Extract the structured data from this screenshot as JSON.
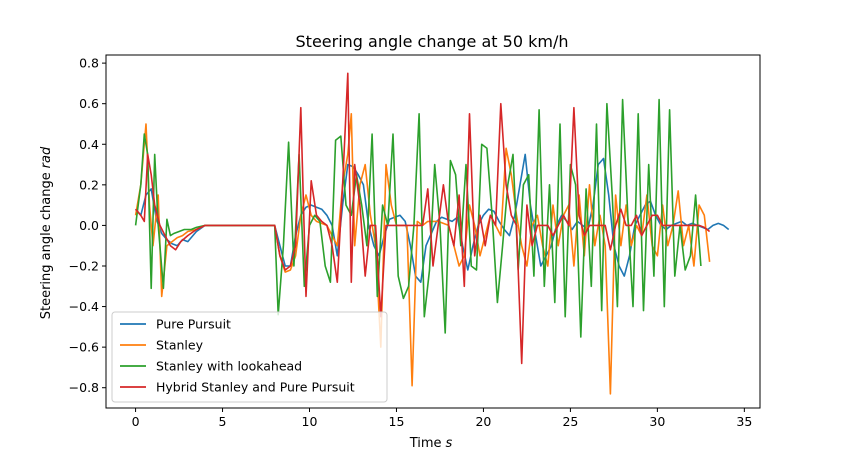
{
  "chart_data": {
    "type": "line",
    "title": "Steering angle change at 50 km/h",
    "xlabel": "Time",
    "xlabel_unit": "s",
    "ylabel": "Steering angle change",
    "ylabel_unit": "rad",
    "xlim": [
      -1.7,
      35.9
    ],
    "ylim": [
      -0.9,
      0.84
    ],
    "xticks": [
      0,
      5,
      10,
      15,
      20,
      25,
      30,
      35
    ],
    "yticks": [
      -0.8,
      -0.6,
      -0.4,
      -0.2,
      0.0,
      0.2,
      0.4,
      0.6,
      0.8
    ],
    "xtick_labels": [
      "0",
      "5",
      "10",
      "15",
      "20",
      "25",
      "30",
      "35"
    ],
    "ytick_labels": [
      "−0.8",
      "−0.6",
      "−0.4",
      "−0.2",
      "0.0",
      "0.2",
      "0.4",
      "0.6",
      "0.8"
    ],
    "grid": false,
    "legend_position": "lower-left",
    "series": [
      {
        "name": "Pure Pursuit",
        "color": "#1f77b4",
        "x": [
          0,
          0.3,
          0.6,
          0.9,
          1.2,
          1.5,
          1.8,
          2.1,
          2.4,
          2.7,
          3.0,
          3.5,
          4.0,
          5.0,
          6.0,
          7.0,
          8.0,
          8.3,
          8.6,
          8.9,
          9.2,
          9.5,
          9.8,
          10.1,
          10.4,
          10.7,
          11.0,
          11.3,
          11.6,
          11.9,
          12.2,
          12.5,
          12.8,
          13.1,
          13.4,
          13.7,
          14.0,
          14.3,
          14.6,
          14.9,
          15.2,
          15.5,
          15.8,
          16.1,
          16.4,
          16.7,
          17.0,
          17.3,
          17.6,
          17.9,
          18.2,
          18.5,
          18.8,
          19.1,
          19.4,
          19.7,
          20.0,
          20.3,
          20.6,
          20.9,
          21.2,
          21.5,
          21.8,
          22.1,
          22.4,
          22.7,
          23.0,
          23.3,
          23.6,
          23.9,
          24.2,
          24.5,
          24.8,
          25.1,
          25.4,
          25.7,
          26.0,
          26.3,
          26.6,
          26.9,
          27.2,
          27.5,
          27.8,
          28.1,
          28.4,
          28.7,
          29.0,
          29.3,
          29.6,
          29.9,
          30.2,
          30.5,
          30.8,
          31.1,
          31.4,
          31.7,
          32.0,
          32.3,
          32.6,
          32.9,
          33.2,
          33.5,
          33.8,
          34.1
        ],
        "values": [
          0.08,
          0.05,
          0.15,
          0.18,
          0.03,
          -0.04,
          -0.07,
          -0.09,
          -0.1,
          -0.07,
          -0.08,
          -0.03,
          0.0,
          0.0,
          0.0,
          0.0,
          0.0,
          -0.1,
          -0.2,
          -0.2,
          -0.05,
          0.05,
          0.09,
          0.1,
          0.09,
          0.08,
          0.05,
          0.0,
          -0.15,
          0.1,
          0.3,
          0.29,
          0.25,
          0.2,
          0.0,
          -0.1,
          -0.15,
          -0.05,
          0.03,
          0.04,
          0.05,
          0.02,
          -0.1,
          -0.25,
          -0.28,
          -0.1,
          -0.04,
          0.02,
          0.04,
          0.03,
          0.02,
          0.04,
          -0.1,
          -0.22,
          -0.1,
          0.0,
          0.05,
          0.08,
          0.07,
          0.02,
          -0.02,
          -0.05,
          0.05,
          0.2,
          0.35,
          0.1,
          -0.05,
          -0.2,
          -0.15,
          -0.1,
          0.0,
          0.05,
          0.02,
          -0.02,
          0.02,
          0.0,
          -0.02,
          0.1,
          0.3,
          0.33,
          0.15,
          -0.1,
          -0.2,
          -0.25,
          -0.15,
          0.0,
          0.05,
          0.1,
          0.12,
          0.05,
          0.0,
          -0.02,
          0.0,
          0.01,
          0.02,
          0.0,
          0.01,
          0.0,
          -0.01,
          -0.02,
          0.0,
          0.01,
          0.0,
          -0.02
        ]
      },
      {
        "name": "Stanley",
        "color": "#ff7f0e",
        "x": [
          0,
          0.3,
          0.6,
          0.8,
          1.0,
          1.3,
          1.5,
          1.8,
          2.1,
          2.4,
          2.7,
          3.0,
          3.5,
          4.0,
          5.0,
          6.0,
          7.0,
          8.0,
          8.3,
          8.6,
          8.9,
          9.2,
          9.5,
          9.8,
          10.1,
          10.4,
          10.7,
          11.0,
          11.3,
          11.6,
          11.9,
          12.2,
          12.4,
          12.6,
          12.9,
          13.2,
          13.5,
          13.8,
          14.1,
          14.4,
          14.7,
          15.0,
          15.3,
          15.6,
          15.9,
          16.2,
          16.5,
          16.8,
          17.1,
          17.4,
          17.7,
          18.0,
          18.3,
          18.6,
          18.9,
          19.2,
          19.5,
          19.8,
          20.1,
          20.4,
          20.7,
          21.0,
          21.3,
          21.6,
          21.9,
          22.2,
          22.5,
          22.8,
          23.1,
          23.4,
          23.7,
          24.0,
          24.3,
          24.6,
          24.9,
          25.2,
          25.5,
          25.8,
          26.1,
          26.4,
          26.7,
          27.0,
          27.3,
          27.6,
          27.9,
          28.2,
          28.5,
          28.8,
          29.1,
          29.4,
          29.7,
          30.0,
          30.3,
          30.6,
          30.9,
          31.2,
          31.5,
          31.8,
          32.1,
          32.4,
          32.7,
          33.0
        ],
        "values": [
          0.05,
          0.2,
          0.5,
          0.1,
          -0.1,
          0.15,
          -0.35,
          -0.1,
          -0.08,
          -0.06,
          -0.05,
          -0.03,
          -0.02,
          0.0,
          0.0,
          0.0,
          0.0,
          0.0,
          -0.15,
          -0.23,
          -0.22,
          -0.15,
          0.05,
          0.15,
          0.05,
          0.02,
          0.01,
          0.0,
          -0.05,
          -0.1,
          0.2,
          0.35,
          0.55,
          -0.1,
          0.2,
          0.3,
          0.05,
          -0.1,
          -0.6,
          0.3,
          0.1,
          0.0,
          0.0,
          0.0,
          -0.79,
          0.02,
          0.0,
          0.02,
          0.02,
          0.02,
          0.01,
          0.0,
          -0.1,
          -0.2,
          -0.15,
          0.1,
          0.0,
          -0.15,
          -0.05,
          0.05,
          0.0,
          -0.05,
          0.38,
          0.25,
          0.05,
          -0.1,
          -0.2,
          0.0,
          0.05,
          -0.1,
          -0.2,
          0.1,
          -0.1,
          0.05,
          0.1,
          -0.2,
          0.15,
          -0.15,
          0.2,
          -0.1,
          0.05,
          -0.1,
          -0.83,
          0.15,
          -0.1,
          0.1,
          -0.1,
          0.0,
          -0.05,
          0.15,
          -0.1,
          -0.15,
          0.1,
          -0.1,
          0.0,
          0.17,
          -0.1,
          0.0,
          -0.2,
          0.1,
          0.05,
          -0.18
        ]
      },
      {
        "name": "Stanley with lookahead",
        "color": "#2ca02c",
        "x": [
          0,
          0.3,
          0.5,
          0.7,
          0.9,
          1.1,
          1.3,
          1.6,
          1.8,
          2.0,
          2.2,
          2.5,
          2.8,
          3.2,
          3.5,
          4.0,
          5.0,
          6.0,
          7.0,
          8.0,
          8.2,
          8.5,
          8.8,
          9.1,
          9.4,
          9.7,
          10.0,
          10.3,
          10.6,
          10.9,
          11.2,
          11.5,
          11.8,
          12.1,
          12.4,
          12.7,
          13.0,
          13.3,
          13.6,
          13.9,
          14.2,
          14.5,
          14.8,
          15.1,
          15.4,
          15.7,
          16.0,
          16.3,
          16.6,
          16.9,
          17.2,
          17.5,
          17.8,
          18.1,
          18.4,
          18.7,
          19.0,
          19.3,
          19.6,
          19.9,
          20.2,
          20.5,
          20.8,
          21.1,
          21.4,
          21.7,
          22.0,
          22.3,
          22.6,
          22.9,
          23.2,
          23.5,
          23.8,
          24.1,
          24.4,
          24.7,
          25.0,
          25.3,
          25.6,
          25.9,
          26.2,
          26.5,
          26.8,
          27.1,
          27.4,
          27.7,
          28.0,
          28.3,
          28.6,
          28.9,
          29.2,
          29.5,
          29.8,
          30.1,
          30.4,
          30.7,
          31.0,
          31.3,
          31.6,
          31.9,
          32.2,
          32.5
        ],
        "values": [
          0.0,
          0.2,
          0.45,
          0.35,
          -0.31,
          0.35,
          0.0,
          -0.31,
          0.03,
          -0.05,
          -0.04,
          -0.03,
          -0.02,
          -0.02,
          -0.01,
          0.0,
          0.0,
          0.0,
          0.0,
          0.0,
          -0.44,
          -0.1,
          0.41,
          -0.2,
          0.35,
          -0.3,
          0.0,
          0.05,
          0.02,
          -0.2,
          -0.28,
          0.42,
          0.44,
          0.1,
          0.05,
          0.25,
          0.1,
          -0.1,
          0.45,
          -0.35,
          0.1,
          0.0,
          0.45,
          -0.25,
          -0.36,
          -0.3,
          0.0,
          0.55,
          -0.45,
          -0.22,
          0.3,
          0.0,
          -0.53,
          0.32,
          0.25,
          -0.1,
          0.3,
          -0.2,
          -0.22,
          0.4,
          0.38,
          0.05,
          -0.38,
          -0.1,
          0.2,
          0.35,
          -0.22,
          0.2,
          0.25,
          -0.25,
          0.57,
          -0.3,
          0.2,
          -0.38,
          0.5,
          -0.45,
          0.3,
          0.2,
          -0.55,
          0.18,
          -0.3,
          0.5,
          -0.42,
          0.6,
          0.15,
          -0.4,
          0.62,
          0.05,
          -0.4,
          0.55,
          -0.42,
          0.3,
          -0.25,
          0.62,
          -0.4,
          0.57,
          -0.25,
          0.0,
          -0.22,
          -0.15,
          0.15,
          -0.2
        ]
      },
      {
        "name": "Hybrid Stanley and Pure Pursuit",
        "color": "#d62728",
        "x": [
          0,
          0.3,
          0.5,
          0.7,
          0.9,
          1.1,
          1.4,
          1.7,
          2.0,
          2.3,
          2.6,
          3.0,
          3.5,
          4.0,
          5.0,
          6.0,
          7.0,
          8.0,
          8.3,
          8.6,
          8.9,
          9.2,
          9.5,
          9.8,
          10.1,
          10.4,
          10.7,
          11.0,
          11.3,
          11.6,
          11.9,
          12.2,
          12.4,
          12.6,
          12.9,
          13.2,
          13.5,
          13.8,
          14.1,
          14.4,
          14.7,
          15.0,
          15.3,
          15.6,
          15.9,
          16.2,
          16.5,
          16.8,
          17.1,
          17.4,
          17.7,
          18.0,
          18.3,
          18.6,
          18.9,
          19.2,
          19.5,
          19.8,
          20.1,
          20.4,
          20.7,
          21.0,
          21.3,
          21.6,
          21.9,
          22.2,
          22.5,
          22.8,
          23.1,
          23.4,
          23.7,
          24.0,
          24.3,
          24.6,
          24.9,
          25.2,
          25.5,
          25.8,
          26.1,
          26.4,
          26.7,
          27.0,
          27.3,
          27.6,
          27.9,
          28.2,
          28.5,
          28.8,
          29.1,
          29.4,
          29.7,
          30.0,
          30.3,
          30.6,
          30.9,
          31.2,
          31.5,
          31.8,
          32.1,
          32.4,
          32.7,
          33.0
        ],
        "values": [
          0.08,
          0.05,
          0.02,
          0.35,
          0.25,
          0.1,
          0.0,
          -0.05,
          -0.1,
          -0.12,
          -0.08,
          -0.05,
          -0.02,
          0.0,
          0.0,
          0.0,
          0.0,
          0.0,
          -0.15,
          -0.22,
          -0.2,
          -0.1,
          0.58,
          -0.35,
          0.22,
          0.05,
          0.02,
          0.0,
          -0.1,
          -0.28,
          0.2,
          0.75,
          -0.28,
          0.3,
          0.1,
          -0.25,
          0.0,
          0.0,
          -0.45,
          0.0,
          0.0,
          0.0,
          0.0,
          0.0,
          0.0,
          0.0,
          0.0,
          0.18,
          -0.2,
          0.0,
          0.2,
          0.0,
          -0.1,
          0.15,
          -0.3,
          0.55,
          -0.15,
          0.05,
          -0.1,
          0.05,
          0.0,
          0.6,
          0.2,
          0.05,
          0.0,
          -0.68,
          0.1,
          -0.1,
          0.0,
          0.0,
          0.0,
          -0.05,
          0.0,
          0.05,
          0.0,
          0.58,
          0.05,
          -0.05,
          0.0,
          0.0,
          0.0,
          0.0,
          -0.12,
          0.0,
          0.08,
          0.0,
          0.0,
          0.05,
          -0.05,
          0.0,
          0.05,
          0.05,
          0.0,
          0.0,
          0.0,
          0.0,
          0.0,
          0.0,
          0.0,
          0.0,
          -0.01,
          -0.03
        ]
      }
    ]
  }
}
